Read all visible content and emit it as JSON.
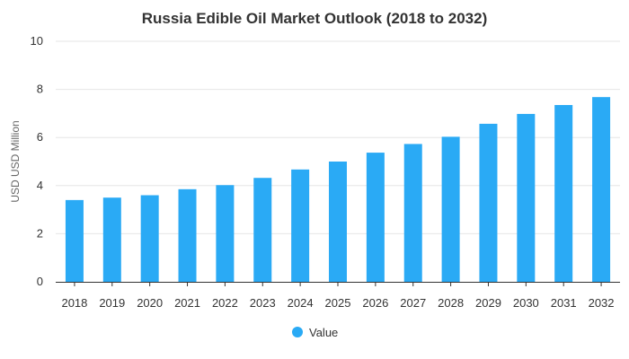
{
  "chart_data": {
    "type": "bar",
    "title": "Russia Edible Oil Market Outlook (2018 to 2032)",
    "xlabel": "",
    "ylabel": "USD USD Million",
    "categories": [
      "2018",
      "2019",
      "2020",
      "2021",
      "2022",
      "2023",
      "2024",
      "2025",
      "2026",
      "2027",
      "2028",
      "2029",
      "2030",
      "2031",
      "2032"
    ],
    "series": [
      {
        "name": "Value",
        "values": [
          3.4,
          3.5,
          3.6,
          3.85,
          4.02,
          4.32,
          4.67,
          5.0,
          5.37,
          5.73,
          6.03,
          6.57,
          6.98,
          7.35,
          7.68
        ],
        "color": "#2aaaf5"
      }
    ],
    "ylim": [
      0,
      10
    ],
    "yticks": [
      0,
      2,
      4,
      6,
      8,
      10
    ],
    "grid": true,
    "legend": "bottom-center"
  }
}
